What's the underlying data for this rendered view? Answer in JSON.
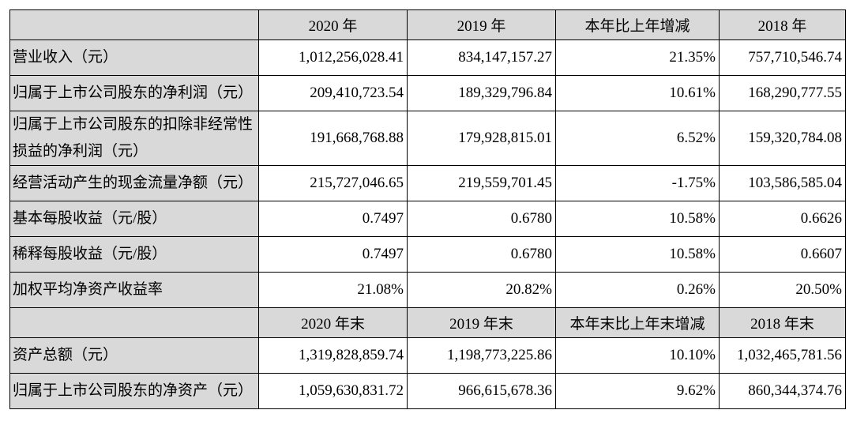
{
  "sections": [
    {
      "columns": [
        "2020 年",
        "2019 年",
        "本年比上年增减",
        "2018 年"
      ],
      "rows": [
        {
          "label": "营业收入（元）",
          "values": [
            "1,012,256,028.41",
            "834,147,157.27",
            "21.35%",
            "757,710,546.74"
          ]
        },
        {
          "label": "归属于上市公司股东的净利润（元）",
          "values": [
            "209,410,723.54",
            "189,329,796.84",
            "10.61%",
            "168,290,777.55"
          ]
        },
        {
          "label": "归属于上市公司股东的扣除非经常性损益的净利润（元）",
          "values": [
            "191,668,768.88",
            "179,928,815.01",
            "6.52%",
            "159,320,784.08"
          ]
        },
        {
          "label": "经营活动产生的现金流量净额（元）",
          "values": [
            "215,727,046.65",
            "219,559,701.45",
            "-1.75%",
            "103,586,585.04"
          ]
        },
        {
          "label": "基本每股收益（元/股）",
          "values": [
            "0.7497",
            "0.6780",
            "10.58%",
            "0.6626"
          ]
        },
        {
          "label": "稀释每股收益（元/股）",
          "values": [
            "0.7497",
            "0.6780",
            "10.58%",
            "0.6607"
          ]
        },
        {
          "label": "加权平均净资产收益率",
          "values": [
            "21.08%",
            "20.82%",
            "0.26%",
            "20.50%"
          ]
        }
      ]
    },
    {
      "columns": [
        "2020 年末",
        "2019 年末",
        "本年末比上年末增减",
        "2018 年末"
      ],
      "rows": [
        {
          "label": "资产总额（元）",
          "values": [
            "1,319,828,859.74",
            "1,198,773,225.86",
            "10.10%",
            "1,032,465,781.56"
          ]
        },
        {
          "label": "归属于上市公司股东的净资产（元）",
          "values": [
            "1,059,630,831.72",
            "966,615,678.36",
            "9.62%",
            "860,344,374.76"
          ]
        }
      ]
    }
  ]
}
